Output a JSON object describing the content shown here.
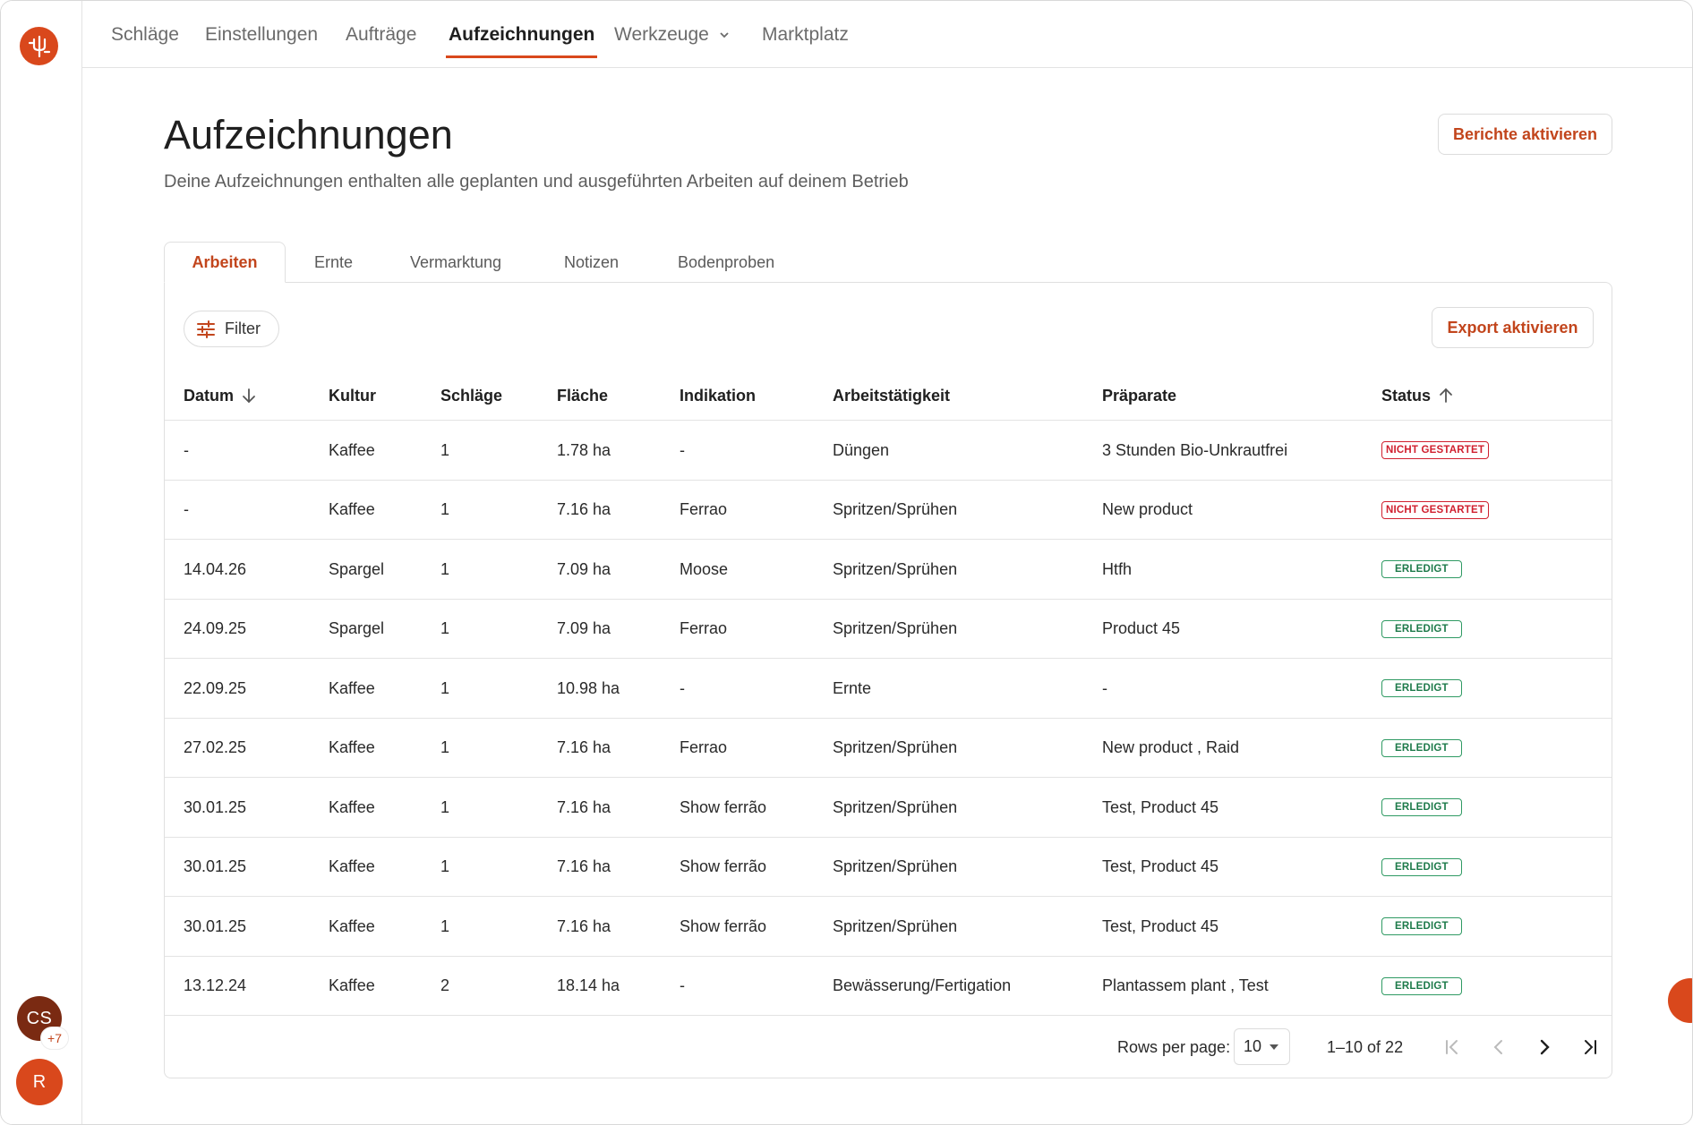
{
  "nav": {
    "items": [
      {
        "label": "Schläge"
      },
      {
        "label": "Einstellungen"
      },
      {
        "label": "Aufträge"
      },
      {
        "label": "Aufzeichnungen"
      },
      {
        "label": "Werkzeuge"
      },
      {
        "label": "Marktplatz"
      }
    ],
    "active": "Aufzeichnungen"
  },
  "sidebar": {
    "avatar_initials": "CS",
    "avatar_extra": "+7",
    "user_initial": "R"
  },
  "header": {
    "title": "Aufzeichnungen",
    "subtitle": "Deine Aufzeichnungen enthalten alle geplanten und ausgeführten Arbeiten auf deinem Betrieb",
    "reports_button": "Berichte aktivieren"
  },
  "tabs": [
    {
      "label": "Arbeiten"
    },
    {
      "label": "Ernte"
    },
    {
      "label": "Vermarktung"
    },
    {
      "label": "Notizen"
    },
    {
      "label": "Bodenproben"
    }
  ],
  "toolbar": {
    "filter_label": "Filter",
    "export_label": "Export aktivieren"
  },
  "table": {
    "columns": [
      "Datum",
      "Kultur",
      "Schläge",
      "Fläche",
      "Indikation",
      "Arbeitstätigkeit",
      "Präparate",
      "Status"
    ],
    "rows": [
      {
        "datum": "-",
        "kultur": "Kaffee",
        "schlaege": "1",
        "flaeche": "1.78 ha",
        "indikation": "-",
        "taetigkeit": "Düngen",
        "praeparate": "3 Stunden Bio-Unkrautfrei",
        "status": "NICHT GESTARTET",
        "status_type": "red"
      },
      {
        "datum": "-",
        "kultur": "Kaffee",
        "schlaege": "1",
        "flaeche": "7.16 ha",
        "indikation": "Ferrao",
        "taetigkeit": "Spritzen/Sprühen",
        "praeparate": "New product",
        "status": "NICHT GESTARTET",
        "status_type": "red"
      },
      {
        "datum": "14.04.26",
        "kultur": "Spargel",
        "schlaege": "1",
        "flaeche": "7.09 ha",
        "indikation": "Moose",
        "taetigkeit": "Spritzen/Sprühen",
        "praeparate": "Htfh",
        "status": "ERLEDIGT",
        "status_type": "green"
      },
      {
        "datum": "24.09.25",
        "kultur": "Spargel",
        "schlaege": "1",
        "flaeche": "7.09 ha",
        "indikation": "Ferrao",
        "taetigkeit": "Spritzen/Sprühen",
        "praeparate": "Product 45",
        "status": "ERLEDIGT",
        "status_type": "green"
      },
      {
        "datum": "22.09.25",
        "kultur": "Kaffee",
        "schlaege": "1",
        "flaeche": "10.98 ha",
        "indikation": "-",
        "taetigkeit": "Ernte",
        "praeparate": "-",
        "status": "ERLEDIGT",
        "status_type": "green"
      },
      {
        "datum": "27.02.25",
        "kultur": "Kaffee",
        "schlaege": "1",
        "flaeche": "7.16 ha",
        "indikation": "Ferrao",
        "taetigkeit": "Spritzen/Sprühen",
        "praeparate": "New product , Raid",
        "status": "ERLEDIGT",
        "status_type": "green"
      },
      {
        "datum": "30.01.25",
        "kultur": "Kaffee",
        "schlaege": "1",
        "flaeche": "7.16 ha",
        "indikation": "Show ferrão",
        "taetigkeit": "Spritzen/Sprühen",
        "praeparate": "Test, Product 45",
        "status": "ERLEDIGT",
        "status_type": "green"
      },
      {
        "datum": "30.01.25",
        "kultur": "Kaffee",
        "schlaege": "1",
        "flaeche": "7.16 ha",
        "indikation": "Show ferrão",
        "taetigkeit": "Spritzen/Sprühen",
        "praeparate": "Test, Product 45",
        "status": "ERLEDIGT",
        "status_type": "green"
      },
      {
        "datum": "30.01.25",
        "kultur": "Kaffee",
        "schlaege": "1",
        "flaeche": "7.16 ha",
        "indikation": "Show ferrão",
        "taetigkeit": "Spritzen/Sprühen",
        "praeparate": "Test, Product 45",
        "status": "ERLEDIGT",
        "status_type": "green"
      },
      {
        "datum": "13.12.24",
        "kultur": "Kaffee",
        "schlaege": "2",
        "flaeche": "18.14 ha",
        "indikation": "-",
        "taetigkeit": "Bewässerung/Fertigation",
        "praeparate": "Plantassem plant , Test",
        "status": "ERLEDIGT",
        "status_type": "green"
      }
    ]
  },
  "pagination": {
    "rows_per_page_label": "Rows per page:",
    "rows_per_page_value": "10",
    "range_label": "1–10 of 22"
  },
  "colors": {
    "accent": "#d9481c",
    "accent_text": "#c2451c",
    "status_red": "#d0202f",
    "status_green": "#2f9a63"
  },
  "icons": {
    "logo": "farm-logo-icon",
    "filter": "sliders-icon",
    "sort_desc": "arrow-down-icon",
    "sort_asc": "arrow-up-icon",
    "chevron": "chevron-down-icon",
    "chat": "chat-bubble-icon"
  }
}
